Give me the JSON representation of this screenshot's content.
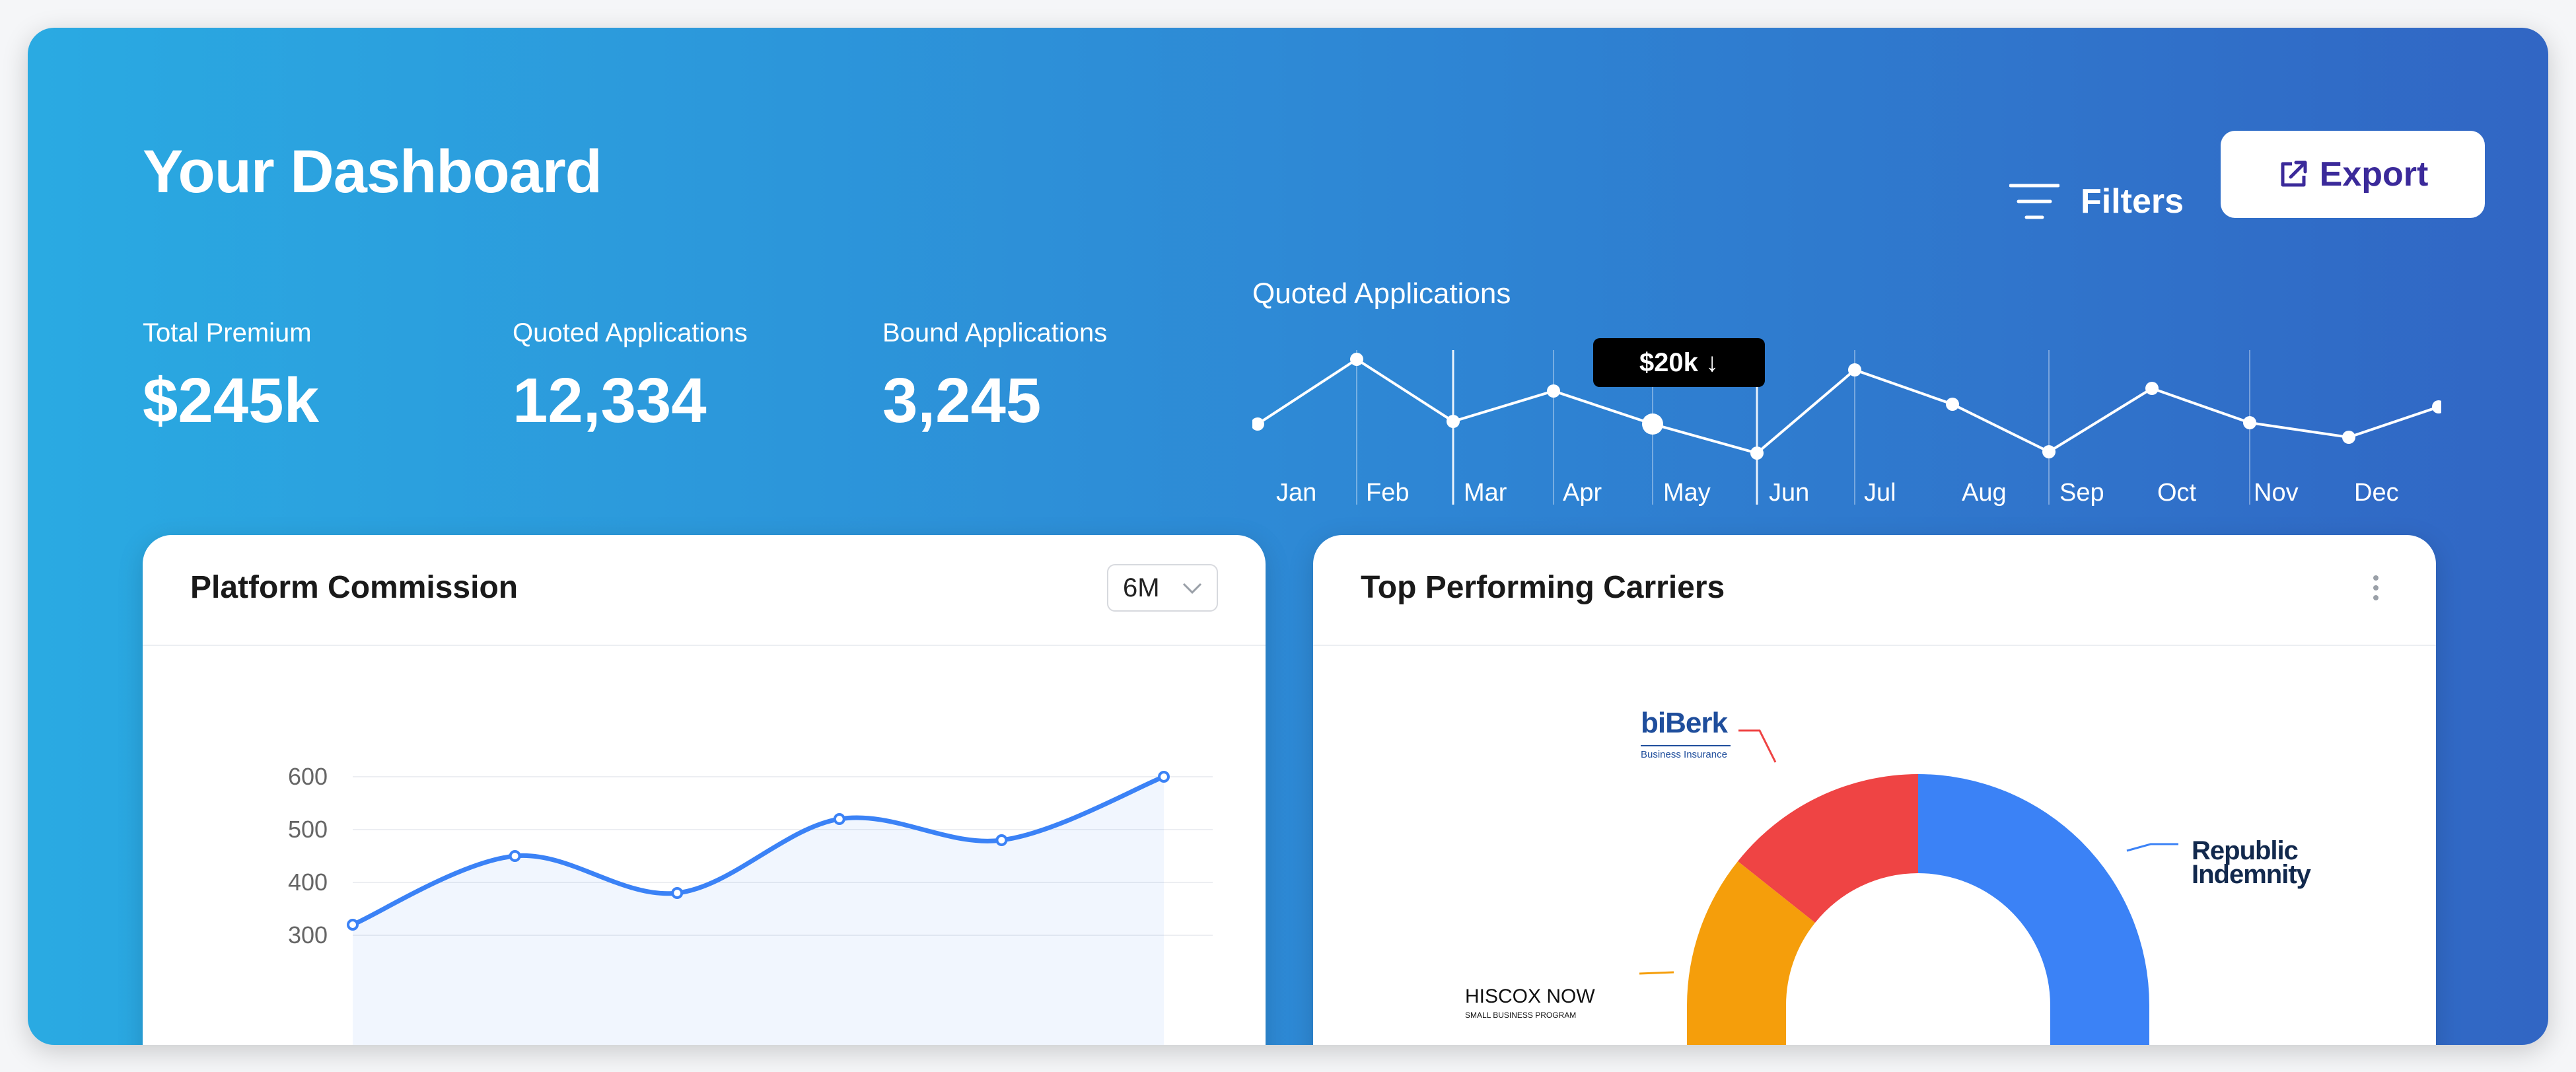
{
  "header": {
    "title": "Your Dashboard",
    "filters_label": "Filters",
    "export_label": "Export"
  },
  "stats": [
    {
      "label": "Total Premium",
      "value": "$245k"
    },
    {
      "label": "Quoted Applications",
      "value": "12,334"
    },
    {
      "label": "Bound Applications",
      "value": "3,245"
    }
  ],
  "sparkline": {
    "title": "Quoted Applications",
    "tooltip": "$20k ↓",
    "months": [
      "Jan",
      "Feb",
      "Mar",
      "Apr",
      "May",
      "Jun",
      "Jul",
      "Aug",
      "Sep",
      "Oct",
      "Nov",
      "Dec"
    ]
  },
  "commission_card": {
    "title": "Platform Commission",
    "range_selected": "6M"
  },
  "carriers_card": {
    "title": "Top Performing Carriers",
    "carriers": [
      {
        "name": "Republic Indemnity",
        "color": "#3b82f6"
      },
      {
        "name": "biBerk",
        "tagline": "Business Insurance",
        "color": "#ef4444"
      },
      {
        "name": "HISCOX NOW",
        "tagline": "SMALL BUSINESS PROGRAM",
        "color": "#f59e0b"
      }
    ]
  },
  "chart_data": {
    "type": "line",
    "x": [
      "1",
      "2",
      "3",
      "4",
      "5",
      "6"
    ],
    "values": [
      320,
      450,
      380,
      520,
      480,
      600
    ],
    "yticks": [
      600,
      500,
      400,
      300
    ],
    "ylim": [
      200,
      650
    ],
    "grid": true
  },
  "colors": {
    "line": "#3b82f6",
    "export_text": "#3b2a9a"
  }
}
